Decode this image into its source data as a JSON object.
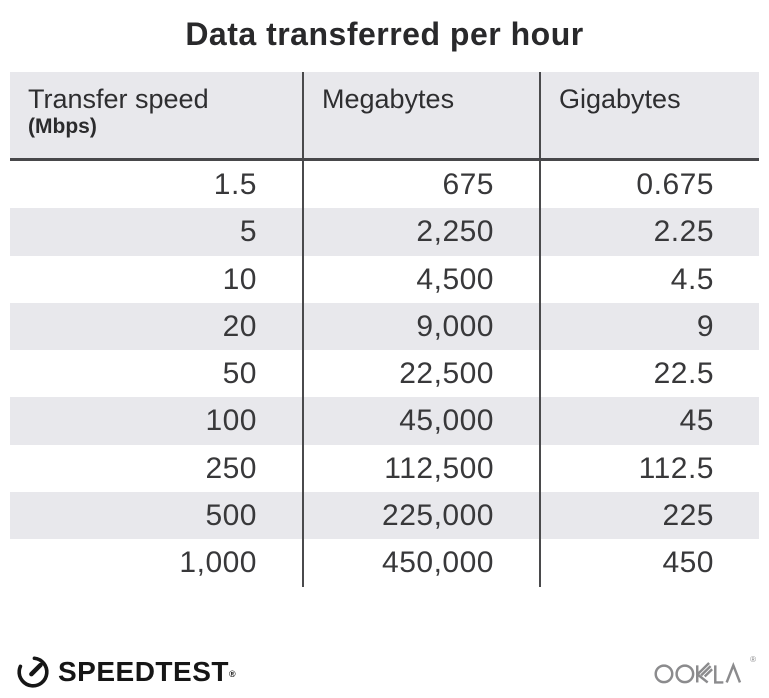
{
  "title": "Data transferred per hour",
  "table": {
    "columns": [
      {
        "label": "Transfer speed",
        "sublabel": "(Mbps)"
      },
      {
        "label": "Megabytes"
      },
      {
        "label": "Gigabytes"
      }
    ],
    "rows": [
      [
        "1.5",
        "675",
        "0.675"
      ],
      [
        "5",
        "2,250",
        "2.25"
      ],
      [
        "10",
        "4,500",
        "4.5"
      ],
      [
        "20",
        "9,000",
        "9"
      ],
      [
        "50",
        "22,500",
        "22.5"
      ],
      [
        "100",
        "45,000",
        "45"
      ],
      [
        "250",
        "112,500",
        "112.5"
      ],
      [
        "500",
        "225,000",
        "225"
      ],
      [
        "1,000",
        "450,000",
        "450"
      ]
    ]
  },
  "chart_data": {
    "type": "table",
    "title": "Data transferred per hour",
    "columns": [
      "Transfer speed (Mbps)",
      "Megabytes",
      "Gigabytes"
    ],
    "rows": [
      [
        1.5,
        675,
        0.675
      ],
      [
        5,
        2250,
        2.25
      ],
      [
        10,
        4500,
        4.5
      ],
      [
        20,
        9000,
        9
      ],
      [
        50,
        22500,
        22.5
      ],
      [
        100,
        45000,
        45
      ],
      [
        250,
        112500,
        112.5
      ],
      [
        500,
        225000,
        225
      ],
      [
        1000,
        450000,
        450
      ]
    ]
  },
  "footer": {
    "speedtest_label": "SPEEDTEST",
    "speedtest_reg": "®",
    "ookla_label": "OOKLA",
    "ookla_reg": "®"
  },
  "colors": {
    "stripe": "#e8e8ec",
    "divider": "#4a4a4c",
    "header_rule": "#47474a",
    "text": "#38383a",
    "ookla_gray": "#8b8b8d",
    "logo_black": "#161616"
  }
}
